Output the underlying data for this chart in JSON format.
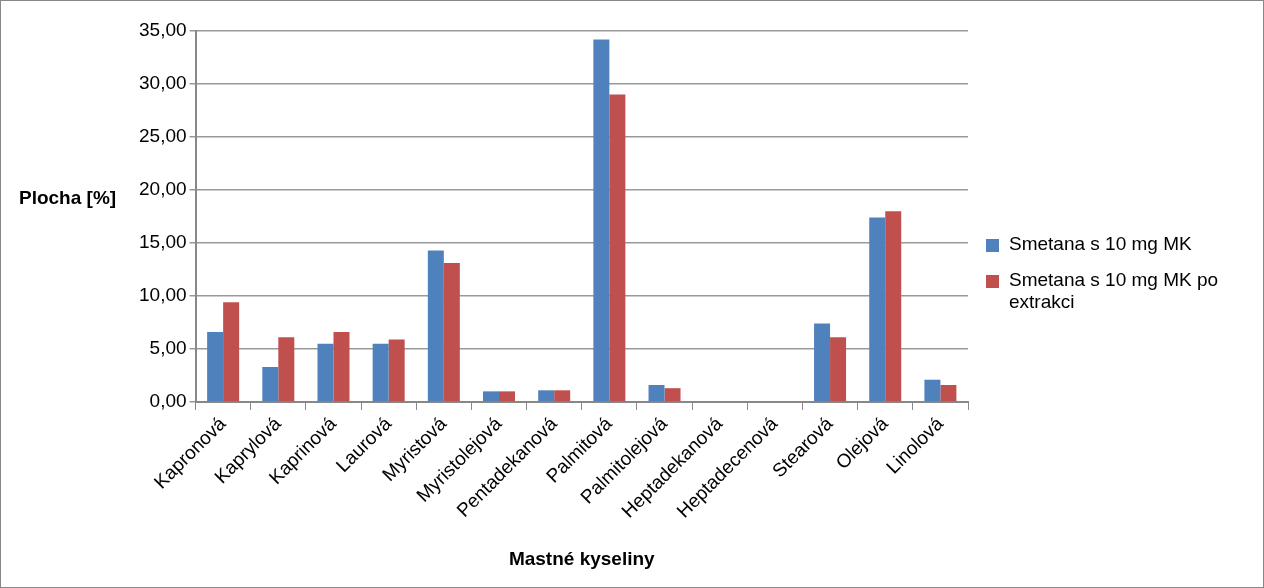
{
  "chart_data": {
    "type": "bar",
    "xlabel": "Mastné kyseliny",
    "ylabel": "Plocha [%]",
    "categories": [
      "Kapronová",
      "Kaprylová",
      "Kaprinová",
      "Laurová",
      "Myristová",
      "Myristolejová",
      "Pentadekanová",
      "Palmitová",
      "Palmitolejová",
      "Heptadekanová",
      "Heptadecenová",
      "Stearová",
      "Olejová",
      "Linolová"
    ],
    "series": [
      {
        "name": "Smetana s 10 mg MK",
        "color": "#4f81bd",
        "values": [
          6.6,
          3.3,
          5.5,
          5.5,
          14.3,
          1.0,
          1.1,
          34.2,
          1.6,
          0,
          0,
          7.4,
          17.4,
          2.1
        ]
      },
      {
        "name": "Smetana s 10 mg MK po extrakci",
        "color": "#c0504d",
        "values": [
          9.4,
          6.1,
          6.6,
          5.9,
          13.1,
          1.0,
          1.1,
          29.0,
          1.3,
          0,
          0,
          6.1,
          18.0,
          1.6
        ]
      }
    ],
    "ylim": [
      0,
      35
    ],
    "yticks": [
      {
        "value": 0,
        "label": "0,00"
      },
      {
        "value": 5,
        "label": "5,00"
      },
      {
        "value": 10,
        "label": "10,00"
      },
      {
        "value": 15,
        "label": "15,00"
      },
      {
        "value": 20,
        "label": "20,00"
      },
      {
        "value": 25,
        "label": "25,00"
      },
      {
        "value": 30,
        "label": "30,00"
      },
      {
        "value": 35,
        "label": "35,00"
      }
    ],
    "grid": "y",
    "legend": "right"
  }
}
